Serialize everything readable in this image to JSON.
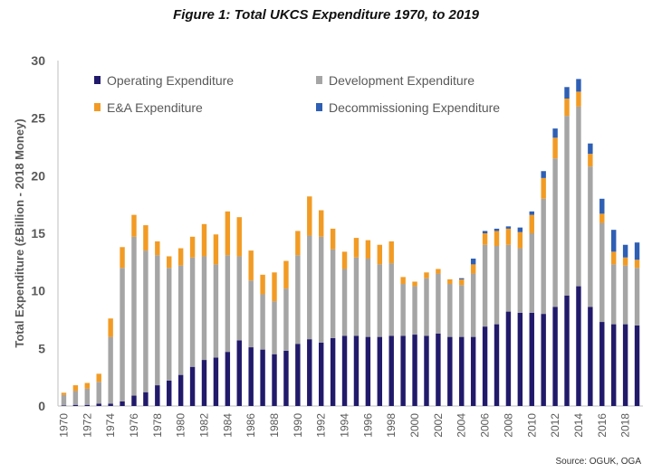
{
  "chart_data": {
    "type": "bar",
    "stacked": true,
    "title": "Figure 1: Total UKCS Expenditure 1970, to 2019",
    "xlabel": "",
    "ylabel": "Total Expenditure (£Billion - 2018 Money)",
    "ylim": [
      0,
      30
    ],
    "yticks": [
      "0",
      "5",
      "10",
      "15",
      "20",
      "25",
      "30"
    ],
    "grid": false,
    "legend_position": "top",
    "source": "Source: OGUK, OGA",
    "x_tick_labels": [
      "1970",
      "1972",
      "1974",
      "1976",
      "1978",
      "1980",
      "1982",
      "1984",
      "1986",
      "1988",
      "1990",
      "1992",
      "1994",
      "1996",
      "1998",
      "2000",
      "2002",
      "2004",
      "2006",
      "2008",
      "2010",
      "2012",
      "2014",
      "2016",
      "2018"
    ],
    "categories": [
      "1970",
      "1971",
      "1972",
      "1973",
      "1974",
      "1975",
      "1976",
      "1977",
      "1978",
      "1979",
      "1980",
      "1981",
      "1982",
      "1983",
      "1984",
      "1985",
      "1986",
      "1987",
      "1988",
      "1989",
      "1990",
      "1991",
      "1992",
      "1993",
      "1994",
      "1995",
      "1996",
      "1997",
      "1998",
      "1999",
      "2000",
      "2001",
      "2002",
      "2003",
      "2004",
      "2005",
      "2006",
      "2007",
      "2008",
      "2009",
      "2010",
      "2011",
      "2012",
      "2013",
      "2014",
      "2015",
      "2016",
      "2017",
      "2018",
      "2019"
    ],
    "series": [
      {
        "name": "Operating Expenditure",
        "color": "#211a6b",
        "values": [
          0.05,
          0.1,
          0.1,
          0.2,
          0.2,
          0.4,
          0.9,
          1.2,
          1.8,
          2.2,
          2.7,
          3.4,
          4.0,
          4.2,
          4.7,
          5.7,
          5.1,
          4.9,
          4.5,
          4.8,
          5.4,
          5.8,
          5.5,
          5.9,
          6.1,
          6.1,
          6.0,
          6.0,
          6.1,
          6.1,
          6.2,
          6.1,
          6.3,
          6.0,
          6.0,
          6.0,
          6.9,
          7.1,
          8.2,
          8.1,
          8.1,
          8.0,
          8.6,
          9.6,
          10.4,
          8.6,
          7.3,
          7.1,
          7.1,
          7.0
        ]
      },
      {
        "name": "Development Expenditure",
        "color": "#a5a5a5",
        "values": [
          0.9,
          1.2,
          1.4,
          1.9,
          5.8,
          11.6,
          13.8,
          12.3,
          11.3,
          9.8,
          9.5,
          9.5,
          9.0,
          8.1,
          8.4,
          7.3,
          5.8,
          4.8,
          4.6,
          5.4,
          7.7,
          9.0,
          9.2,
          7.7,
          5.8,
          6.8,
          6.8,
          6.3,
          6.3,
          4.5,
          4.2,
          5.0,
          5.2,
          4.6,
          4.5,
          5.5,
          7.1,
          6.8,
          5.8,
          5.6,
          6.9,
          10.0,
          12.9,
          15.6,
          15.6,
          12.2,
          8.6,
          5.2,
          5.1,
          5.0
        ]
      },
      {
        "name": "E&A Expenditure",
        "color": "#f29b24",
        "values": [
          0.2,
          0.5,
          0.5,
          0.7,
          1.6,
          1.8,
          1.9,
          2.2,
          1.2,
          1.0,
          1.5,
          1.8,
          2.8,
          2.6,
          3.8,
          3.4,
          2.6,
          1.7,
          2.5,
          2.4,
          2.1,
          3.4,
          2.3,
          1.8,
          1.5,
          1.7,
          1.6,
          1.7,
          1.9,
          0.6,
          0.4,
          0.5,
          0.4,
          0.4,
          0.5,
          0.8,
          1.0,
          1.3,
          1.4,
          1.4,
          1.6,
          1.8,
          1.8,
          1.5,
          1.3,
          1.1,
          0.8,
          1.1,
          0.7,
          0.7
        ]
      },
      {
        "name": "Decommissioning Expenditure",
        "color": "#2e5fb4",
        "values": [
          0,
          0,
          0,
          0,
          0,
          0,
          0,
          0,
          0,
          0,
          0,
          0,
          0,
          0,
          0,
          0,
          0,
          0,
          0,
          0,
          0,
          0,
          0,
          0,
          0,
          0,
          0,
          0,
          0,
          0,
          0,
          0,
          0,
          0,
          0.1,
          0.5,
          0.2,
          0.2,
          0.2,
          0.4,
          0.3,
          0.6,
          0.8,
          1.0,
          1.1,
          0.9,
          1.3,
          1.9,
          1.1,
          1.5
        ]
      }
    ]
  }
}
